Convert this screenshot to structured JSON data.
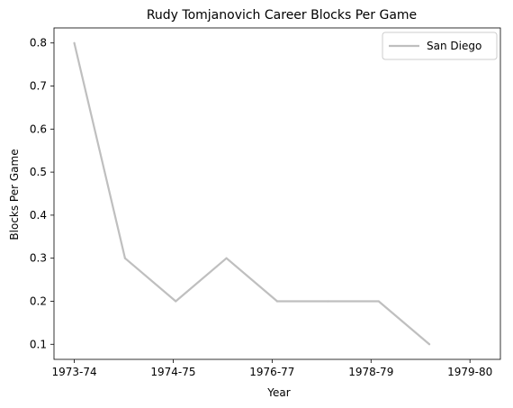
{
  "chart_data": {
    "type": "line",
    "title": "Rudy Tomjanovich Career Blocks Per Game",
    "xlabel": "Year",
    "ylabel": "Blocks Per Game",
    "x_tick_labels": [
      "1973-74",
      "1974-75",
      "1976-77",
      "1978-79",
      "1979-80"
    ],
    "x_tick_positions": [
      0,
      1.95,
      3.9,
      5.85,
      7.8
    ],
    "y_ticks": [
      0.1,
      0.2,
      0.3,
      0.4,
      0.5,
      0.6,
      0.7,
      0.8
    ],
    "xlim": [
      -0.4,
      8.4
    ],
    "ylim": [
      0.065,
      0.835
    ],
    "legend_position": "top-right",
    "grid": false,
    "series": [
      {
        "name": "San Diego",
        "color": "#bfbfbf",
        "x": [
          0,
          1,
          2,
          3,
          4,
          5,
          6,
          7
        ],
        "y": [
          0.8,
          0.3,
          0.2,
          0.3,
          0.2,
          0.2,
          0.2,
          0.1
        ]
      }
    ]
  }
}
